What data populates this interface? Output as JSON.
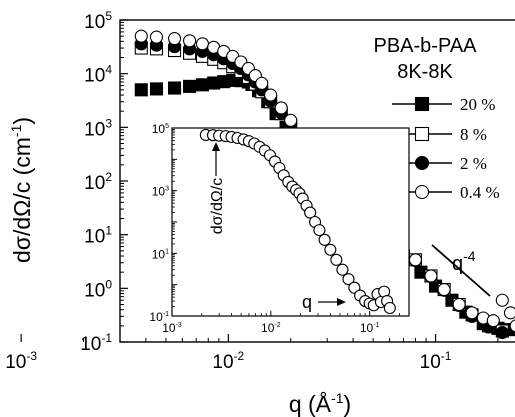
{
  "chart_data": [
    {
      "type": "scatter",
      "role": "main",
      "xlabel": {
        "base": "q (Å",
        "exp": "-1",
        "close": ")"
      },
      "ylabel": {
        "base": "dσ/dΩ/c (cm",
        "exp": "-1",
        "close": ")"
      },
      "xscale": "log",
      "yscale": "log",
      "xlim": [
        0.003,
        0.25
      ],
      "ylim": [
        0.1,
        100000
      ],
      "x_ticks": [
        {
          "base": "10",
          "exp": "-3"
        },
        {
          "base": "10",
          "exp": "-2"
        },
        {
          "base": "10",
          "exp": "-1"
        }
      ],
      "y_ticks": [
        {
          "base": "10",
          "exp": "-1"
        },
        {
          "base": "10",
          "exp": "0"
        },
        {
          "base": "10",
          "exp": "1"
        },
        {
          "base": "10",
          "exp": "2"
        },
        {
          "base": "10",
          "exp": "3"
        },
        {
          "base": "10",
          "exp": "4"
        },
        {
          "base": "10",
          "exp": "5"
        }
      ],
      "annotation_title": [
        "PBA-b-PAA",
        "8K-8K"
      ],
      "annotation_slope": {
        "base": "q",
        "exp": "-4"
      },
      "legend_placement": "right",
      "series": [
        {
          "name": "20 %",
          "marker": "filled-square",
          "x": [
            0.0038,
            0.0045,
            0.0055,
            0.0065,
            0.0075,
            0.0085,
            0.0095,
            0.0105,
            0.0115,
            0.0125,
            0.013,
            0.014,
            0.0155,
            0.017,
            0.019,
            0.021,
            0.024,
            0.027,
            0.031,
            0.036,
            0.042,
            0.05,
            0.06,
            0.07,
            0.085,
            0.1,
            0.12,
            0.14,
            0.17,
            0.2,
            0.23
          ],
          "y": [
            5000,
            5200,
            5400,
            5800,
            6200,
            6700,
            7100,
            7500,
            7400,
            7000,
            6300,
            4800,
            3000,
            1800,
            1000,
            600,
            340,
            200,
            110,
            58,
            30,
            15,
            7.5,
            4.0,
            2.0,
            1.1,
            0.6,
            0.36,
            0.22,
            0.18,
            0.17
          ]
        },
        {
          "name": "8 %",
          "marker": "open-square",
          "x": [
            0.0038,
            0.0045,
            0.0055,
            0.0065,
            0.0075,
            0.0085,
            0.0095,
            0.0105,
            0.0115,
            0.0125,
            0.0135,
            0.0145,
            0.016,
            0.018,
            0.02,
            0.023,
            0.026,
            0.03,
            0.035,
            0.041,
            0.048,
            0.057,
            0.068,
            0.08,
            0.095,
            0.11,
            0.13,
            0.15,
            0.18,
            0.21
          ],
          "y": [
            30000,
            29000,
            27000,
            24000,
            21000,
            18500,
            16000,
            13500,
            11000,
            8500,
            6400,
            4600,
            3000,
            1800,
            1100,
            600,
            350,
            190,
            100,
            52,
            27,
            13,
            6.6,
            3.4,
            1.7,
            0.95,
            0.5,
            0.32,
            0.2,
            0.16
          ]
        },
        {
          "name": "2 %",
          "marker": "filled-circle",
          "x": [
            0.0038,
            0.0045,
            0.0055,
            0.0065,
            0.0075,
            0.0085,
            0.0095,
            0.0105,
            0.0115,
            0.0125,
            0.0135,
            0.0145,
            0.016,
            0.018,
            0.02,
            0.023,
            0.026,
            0.03,
            0.035,
            0.041,
            0.048,
            0.057,
            0.068,
            0.08,
            0.095,
            0.11,
            0.13,
            0.15,
            0.18,
            0.21
          ],
          "y": [
            36000,
            34000,
            32000,
            29000,
            26000,
            22500,
            19000,
            15500,
            12500,
            9500,
            7000,
            5000,
            3100,
            1850,
            1100,
            600,
            345,
            185,
            98,
            50,
            26,
            12.5,
            6.3,
            3.3,
            1.65,
            0.92,
            0.48,
            0.3,
            0.19,
            0.15
          ]
        },
        {
          "name": "0.4 %",
          "marker": "open-circle",
          "x": [
            0.0038,
            0.0045,
            0.0055,
            0.0065,
            0.0075,
            0.0085,
            0.0095,
            0.0105,
            0.0115,
            0.0125,
            0.0135,
            0.0145,
            0.016,
            0.018,
            0.02,
            0.023,
            0.026,
            0.03,
            0.035,
            0.041,
            0.048,
            0.057,
            0.068,
            0.08,
            0.095,
            0.11,
            0.13,
            0.15,
            0.17,
            0.19,
            0.21,
            0.23,
            0.245
          ],
          "y": [
            50000,
            48000,
            45000,
            41000,
            36000,
            31000,
            26000,
            21000,
            16500,
            12500,
            9200,
            6600,
            4000,
            2300,
            1350,
            720,
            400,
            210,
            110,
            55,
            28,
            13.5,
            6.6,
            3.4,
            1.7,
            0.95,
            0.5,
            0.35,
            0.28,
            0.25,
            0.6,
            0.35,
            0.2
          ]
        }
      ]
    },
    {
      "type": "scatter",
      "role": "inset",
      "xlabel": "q",
      "ylabel": "dσ/dΩ/c",
      "xscale": "log",
      "yscale": "log",
      "xlim": [
        0.001,
        0.25
      ],
      "ylim": [
        0.1,
        100000
      ],
      "x_ticks": [
        {
          "base": "10",
          "exp": "-3"
        },
        {
          "base": "10",
          "exp": "-2"
        },
        {
          "base": "10",
          "exp": "-1"
        }
      ],
      "y_ticks": [
        {
          "base": "10",
          "exp": "-1"
        },
        {
          "base": "10",
          "exp": "1"
        },
        {
          "base": "10",
          "exp": "3"
        },
        {
          "base": "10",
          "exp": "5"
        }
      ],
      "series": [
        {
          "marker": "open-circle",
          "x": [
            0.0022,
            0.0026,
            0.003,
            0.0035,
            0.004,
            0.0046,
            0.0053,
            0.006,
            0.0068,
            0.0077,
            0.0087,
            0.0098,
            0.011,
            0.0122,
            0.0135,
            0.015,
            0.0165,
            0.018,
            0.0195,
            0.021,
            0.023,
            0.025,
            0.028,
            0.031,
            0.035,
            0.04,
            0.046,
            0.053,
            0.061,
            0.07,
            0.08,
            0.09,
            0.1,
            0.11,
            0.12,
            0.13,
            0.14,
            0.15,
            0.16
          ],
          "y": [
            60000,
            59000,
            57000,
            55000,
            52000,
            48000,
            43000,
            38000,
            32000,
            25000,
            19000,
            13500,
            8500,
            5300,
            3100,
            1900,
            1350,
            1050,
            820,
            560,
            330,
            200,
            100,
            55,
            27,
            13,
            6.2,
            3.0,
            1.5,
            0.8,
            0.45,
            0.3,
            0.25,
            0.22,
            0.5,
            0.28,
            0.6,
            0.3,
            0.18
          ]
        }
      ]
    }
  ]
}
